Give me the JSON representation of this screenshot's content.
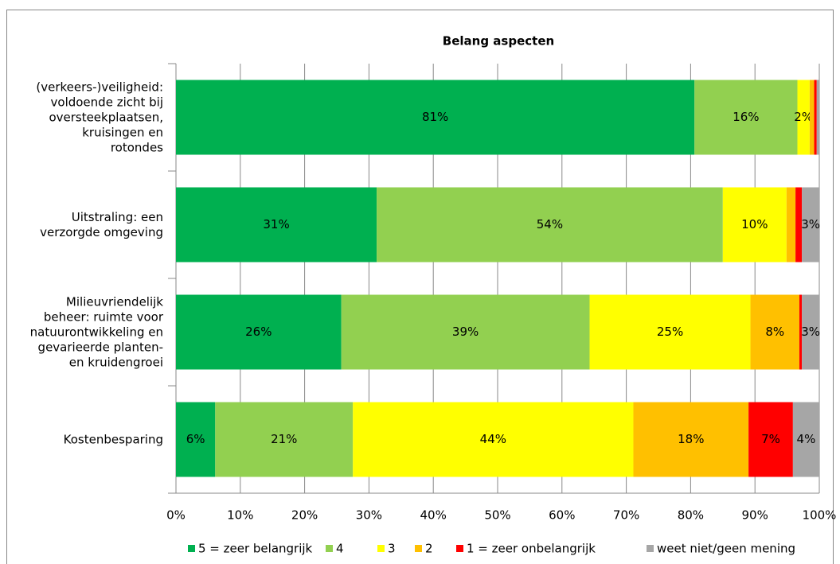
{
  "chart_data": {
    "type": "stacked_barh",
    "title": "Belang aspecten",
    "categories": [
      "(verkeers-)veiligheid:\nvoldoende zicht bij\noversteekplaatsen,\nkruisingen en\nrotondes",
      "Uitstraling: een\nverzorgde omgeving",
      "Milieuvriendelijk\nbeheer: ruimte voor\nnatuurontwikkeling en\ngevarieerde planten-\nen kruidengroei",
      "Kostenbesparing"
    ],
    "series": [
      {
        "name": "5 = zeer belangrijk",
        "color": "#00b050",
        "values": [
          80.6,
          31.2,
          25.7,
          6.1
        ],
        "value_labels": [
          "81%",
          "31%",
          "26%",
          "6%"
        ]
      },
      {
        "name": "4",
        "color": "#92d050",
        "values": [
          16.0,
          53.8,
          38.6,
          21.4
        ],
        "value_labels": [
          "16%",
          "54%",
          "39%",
          "21%"
        ]
      },
      {
        "name": "3",
        "color": "#ffff00",
        "values": [
          1.9,
          9.9,
          25.0,
          43.6
        ],
        "value_labels": [
          "2%",
          "10%",
          "25%",
          "44%"
        ]
      },
      {
        "name": "2",
        "color": "#ffc000",
        "values": [
          0.7,
          1.4,
          7.6,
          17.9
        ],
        "value_labels": [
          null,
          null,
          "8%",
          "18%"
        ]
      },
      {
        "name": "1 = zeer onbelangrijk",
        "color": "#ff0000",
        "values": [
          0.4,
          1.0,
          0.4,
          6.9
        ],
        "value_labels": [
          null,
          null,
          null,
          "7%"
        ]
      },
      {
        "name": "weet niet/geen mening",
        "color": "#a6a6a6",
        "values": [
          0.4,
          2.7,
          2.7,
          4.1
        ],
        "value_labels": [
          null,
          "3%",
          "3%",
          "4%"
        ]
      }
    ],
    "xlim": [
      0,
      100
    ],
    "xticks": [
      {
        "value": 0,
        "label": "0%"
      },
      {
        "value": 10,
        "label": "10%"
      },
      {
        "value": 20,
        "label": "20%"
      },
      {
        "value": 30,
        "label": "30%"
      },
      {
        "value": 40,
        "label": "40%"
      },
      {
        "value": 50,
        "label": "50%"
      },
      {
        "value": 60,
        "label": "60%"
      },
      {
        "value": 70,
        "label": "70%"
      },
      {
        "value": 80,
        "label": "80%"
      },
      {
        "value": 90,
        "label": "90%"
      },
      {
        "value": 100,
        "label": "100%"
      }
    ],
    "grid": true,
    "legend": "bottom"
  }
}
